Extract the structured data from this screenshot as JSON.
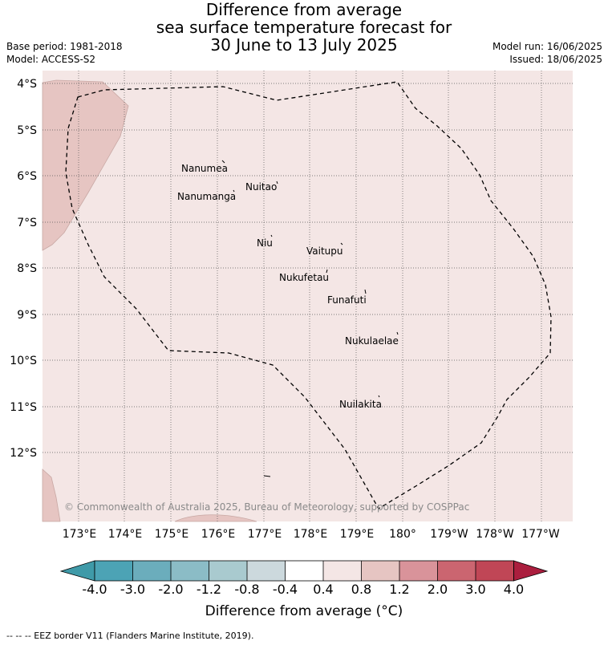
{
  "title": {
    "line1": "Difference from average",
    "line2": "sea surface temperature forecast for",
    "line3": "30 June to 13 July 2025"
  },
  "meta": {
    "base_period": "Base period: 1981-2018",
    "model": "Model: ACCESS-S2",
    "model_run": "Model run: 16/06/2025",
    "issued": "Issued: 18/06/2025"
  },
  "map": {
    "lat_ticks": [
      "4°S",
      "5°S",
      "6°S",
      "7°S",
      "8°S",
      "9°S",
      "10°S",
      "11°S",
      "12°S"
    ],
    "lon_ticks": [
      "173°E",
      "174°E",
      "175°E",
      "176°E",
      "177°E",
      "178°E",
      "179°E",
      "180°",
      "179°W",
      "178°W",
      "177°W"
    ],
    "islands": [
      "Nanumea",
      "Nuitao",
      "Nanumanga",
      "Niu",
      "Vaitupu",
      "Nukufetau",
      "Funafuti",
      "Nukulaelae",
      "Nuilakita"
    ],
    "copyright": "© Commonwealth of Australia 2025, Bureau of Meteorology, supported by COSPPac",
    "ocean_color": "#f4e6e5",
    "anomaly_0_4_to_0_8_color": "#f4e6e5",
    "anomaly_0_8_to_1_2_color": "#e6c5c2",
    "eez_border_style": "dashed"
  },
  "colorbar": {
    "ticks": [
      "-4.0",
      "-3.0",
      "-2.0",
      "-1.2",
      "-0.8",
      "-0.4",
      "0.4",
      "0.8",
      "1.2",
      "2.0",
      "3.0",
      "4.0"
    ],
    "colors": [
      "#3f9aa8",
      "#4ca3b5",
      "#6badbc",
      "#8bbcc6",
      "#a9cacf",
      "#ccd9dd",
      "#ffffff",
      "#f4e6e5",
      "#e6c5c2",
      "#d9939a",
      "#cb6570",
      "#c04656",
      "#ab1e3e"
    ],
    "label": "Difference from average (°C)"
  },
  "footer": "-- -- -- EEZ border V11 (Flanders Marine Institute, 2019)."
}
